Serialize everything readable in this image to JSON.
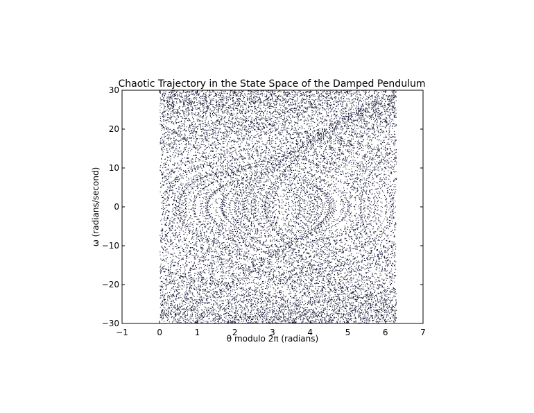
{
  "chart_data": {
    "type": "scatter",
    "title": "Chaotic Trajectory in the State Space of the Damped Pendulum",
    "xlabel": "θ modulo 2π (radians)",
    "ylabel": "ω (radians/second)",
    "xlim": [
      -1,
      7
    ],
    "ylim": [
      -30,
      30
    ],
    "xticks": [
      -1,
      0,
      1,
      2,
      3,
      4,
      5,
      6,
      7
    ],
    "xtick_labels": [
      "−1",
      "0",
      "1",
      "2",
      "3",
      "4",
      "5",
      "6",
      "7"
    ],
    "yticks": [
      -30,
      -20,
      -10,
      0,
      10,
      20,
      30
    ],
    "ytick_labels": [
      "−30",
      "−20",
      "−10",
      "0",
      "10",
      "20",
      "30"
    ],
    "grid": false,
    "legend": "none",
    "marker_color": "#0b0d2b",
    "x_domain": [
      0,
      6.2832
    ],
    "omega_extent": [
      -25,
      25
    ],
    "structure": "dense band of points forming two separatrix-like crossing arcs centred at (π, 0), with nested loops around θ = 0 and θ = 2π"
  }
}
